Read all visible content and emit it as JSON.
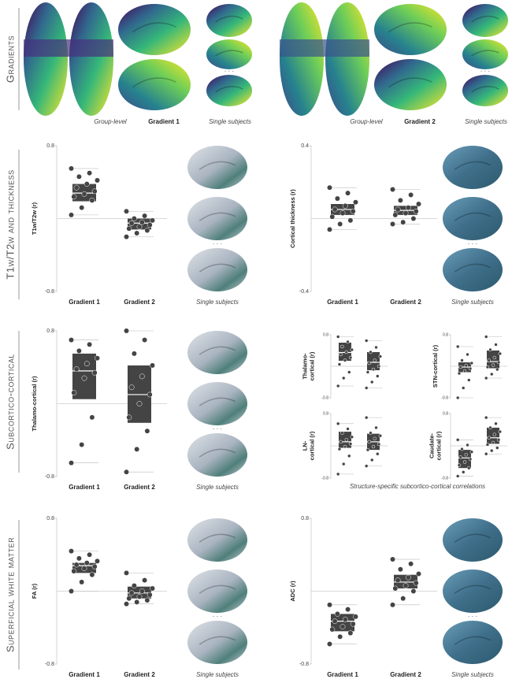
{
  "sections": [
    "Gradients",
    "T1w/T2w and thickness",
    "Subcortico-cortical",
    "Superficial white matter"
  ],
  "gradients_row": [
    {
      "group_caption": "Group-level",
      "gradient": "Gradient 1",
      "subjects_caption": "Single subjects"
    },
    {
      "group_caption": "Group-level",
      "gradient": "Gradient 2",
      "subjects_caption": "Single subjects"
    }
  ],
  "ellipsis": "· · ·",
  "subcortical_caption": "Structure-specific subcortico-cortical correlations",
  "chart_data": [
    {
      "type": "box",
      "ylabel": [
        "T1w/T2w (r)"
      ],
      "categories": [
        "Gradient 1",
        "Gradient 2"
      ],
      "caption": "Single subjects",
      "ylim": [
        -0.8,
        0.8
      ],
      "yticks": [
        -0.8,
        0.8
      ],
      "reference_line": 0,
      "boxes": [
        {
          "q1": 0.19,
          "median": 0.28,
          "q3": 0.38,
          "whiskers": [
            0.04,
            0.55
          ],
          "points": [
            0.55,
            0.5,
            0.46,
            0.42,
            0.38,
            0.34,
            0.3,
            0.27,
            0.24,
            0.2,
            0.12,
            0.04
          ]
        },
        {
          "q1": -0.12,
          "median": -0.05,
          "q3": 0,
          "whiskers": [
            -0.2,
            0.08
          ],
          "points": [
            0.08,
            0.03,
            0,
            -0.02,
            -0.04,
            -0.05,
            -0.07,
            -0.09,
            -0.11,
            -0.13,
            -0.16,
            -0.2
          ]
        }
      ]
    },
    {
      "type": "box",
      "ylabel": [
        "Cortical thickness (r)"
      ],
      "categories": [
        "Gradient 1",
        "Gradient 2"
      ],
      "caption": "Single subjects",
      "ylim": [
        -0.4,
        0.4
      ],
      "yticks": [
        -0.4,
        0.4
      ],
      "reference_line": 0,
      "boxes": [
        {
          "q1": 0.02,
          "median": 0.05,
          "q3": 0.08,
          "whiskers": [
            -0.06,
            0.17
          ],
          "points": [
            0.17,
            0.14,
            0.11,
            0.09,
            0.07,
            0.05,
            0.04,
            0.03,
            0.01,
            -0.01,
            -0.03,
            -0.06
          ]
        },
        {
          "q1": 0.02,
          "median": 0.045,
          "q3": 0.07,
          "whiskers": [
            -0.03,
            0.16
          ],
          "points": [
            0.16,
            0.13,
            0.1,
            0.08,
            0.06,
            0.05,
            0.04,
            0.03,
            0.02,
            0,
            -0.02,
            -0.03
          ]
        }
      ]
    },
    {
      "type": "box",
      "ylabel": [
        "Thalamo-cortical (r)"
      ],
      "categories": [
        "Gradient 1",
        "Gradient 2"
      ],
      "caption": "Single subjects",
      "ylim": [
        -0.8,
        0.8
      ],
      "yticks": [
        -0.8,
        0.8
      ],
      "reference_line": 0,
      "boxes": [
        {
          "q1": 0.05,
          "median": 0.36,
          "q3": 0.55,
          "whiskers": [
            -0.65,
            0.7
          ],
          "points": [
            0.7,
            0.65,
            0.58,
            0.5,
            0.44,
            0.38,
            0.34,
            0.28,
            0.12,
            -0.15,
            -0.45,
            -0.65
          ]
        },
        {
          "q1": -0.21,
          "median": 0.1,
          "q3": 0.42,
          "whiskers": [
            -0.75,
            0.8
          ],
          "points": [
            0.8,
            0.7,
            0.55,
            0.42,
            0.3,
            0.18,
            0.1,
            0,
            -0.15,
            -0.3,
            -0.5,
            -0.75
          ]
        }
      ]
    },
    {
      "type": "box",
      "ylabel": [
        "Thalamo-",
        "cortical (r)"
      ],
      "ylim": [
        -0.8,
        0.8
      ],
      "yticks": [
        -0.8,
        0.8
      ],
      "reference_line": 0,
      "boxes": [
        {
          "q1": 0.14,
          "median": 0.35,
          "q3": 0.6,
          "whiskers": [
            -0.5,
            0.75
          ],
          "points": [
            0.75,
            0.62,
            0.5,
            0.42,
            0.36,
            0.3,
            0.22,
            0.15,
            0.05,
            -0.15,
            -0.3,
            -0.5
          ]
        },
        {
          "q1": -0.1,
          "median": 0.1,
          "q3": 0.36,
          "whiskers": [
            -0.55,
            0.65
          ],
          "points": [
            0.65,
            0.48,
            0.36,
            0.25,
            0.15,
            0.08,
            0,
            -0.08,
            -0.15,
            -0.25,
            -0.4,
            -0.55
          ]
        }
      ]
    },
    {
      "type": "box",
      "ylabel": [
        "STN-cortical (r)"
      ],
      "ylim": [
        -0.8,
        0.8
      ],
      "yticks": [
        -0.8,
        0.8
      ],
      "reference_line": 0,
      "boxes": [
        {
          "q1": -0.15,
          "median": -0.02,
          "q3": 0.1,
          "whiskers": [
            -0.8,
            0.5
          ],
          "points": [
            0.5,
            0.3,
            0.15,
            0.08,
            0.02,
            -0.02,
            -0.06,
            -0.12,
            -0.18,
            -0.35,
            -0.55,
            -0.8
          ]
        },
        {
          "q1": -0.05,
          "median": 0.12,
          "q3": 0.4,
          "whiskers": [
            -0.3,
            0.75
          ],
          "points": [
            0.75,
            0.55,
            0.42,
            0.32,
            0.22,
            0.15,
            0.1,
            0.03,
            -0.02,
            -0.08,
            -0.2,
            -0.3
          ]
        }
      ]
    },
    {
      "type": "box",
      "ylabel": [
        "LN-",
        "cortical (r)"
      ],
      "ylim": [
        -0.8,
        0.8
      ],
      "yticks": [
        -0.8,
        0.8
      ],
      "reference_line": 0,
      "boxes": [
        {
          "q1": -0.05,
          "median": 0.1,
          "q3": 0.35,
          "whiskers": [
            -0.7,
            0.55
          ],
          "points": [
            0.55,
            0.42,
            0.32,
            0.22,
            0.15,
            0.1,
            0.05,
            -0.02,
            -0.08,
            -0.25,
            -0.45,
            -0.7
          ]
        },
        {
          "q1": -0.1,
          "median": 0.1,
          "q3": 0.3,
          "whiskers": [
            -0.5,
            0.7
          ],
          "points": [
            0.7,
            0.45,
            0.32,
            0.25,
            0.18,
            0.1,
            0.04,
            -0.02,
            -0.1,
            -0.2,
            -0.35,
            -0.5
          ]
        }
      ]
    },
    {
      "type": "box",
      "ylabel": [
        "Caudate-",
        "cortical (r)"
      ],
      "ylim": [
        -0.8,
        0.8
      ],
      "yticks": [
        -0.8,
        0.8
      ],
      "reference_line": 0,
      "boxes": [
        {
          "q1": -0.55,
          "median": -0.3,
          "q3": -0.1,
          "whiskers": [
            -0.75,
            0.15
          ],
          "points": [
            0.15,
            0.02,
            -0.08,
            -0.15,
            -0.22,
            -0.28,
            -0.33,
            -0.4,
            -0.48,
            -0.55,
            -0.65,
            -0.75
          ]
        },
        {
          "q1": 0.05,
          "median": 0.2,
          "q3": 0.45,
          "whiskers": [
            -0.2,
            0.7
          ],
          "points": [
            0.7,
            0.55,
            0.45,
            0.35,
            0.28,
            0.2,
            0.15,
            0.08,
            0.03,
            -0.05,
            -0.12,
            -0.2
          ]
        }
      ]
    },
    {
      "type": "box",
      "ylabel": [
        "FA (r)"
      ],
      "categories": [
        "Gradient 1",
        "Gradient 2"
      ],
      "caption": "Single subjects",
      "ylim": [
        -0.8,
        0.8
      ],
      "yticks": [
        -0.8,
        0.8
      ],
      "reference_line": 0,
      "boxes": [
        {
          "q1": 0.2,
          "median": 0.28,
          "q3": 0.31,
          "whiskers": [
            0,
            0.44
          ],
          "points": [
            0.44,
            0.4,
            0.36,
            0.33,
            0.31,
            0.29,
            0.27,
            0.25,
            0.22,
            0.18,
            0.1,
            0
          ]
        },
        {
          "q1": -0.08,
          "median": -0.02,
          "q3": 0.05,
          "whiskers": [
            -0.14,
            0.2
          ],
          "points": [
            0.2,
            0.12,
            0.06,
            0.03,
            0,
            -0.02,
            -0.04,
            -0.06,
            -0.08,
            -0.1,
            -0.12,
            -0.14
          ]
        }
      ]
    },
    {
      "type": "box",
      "ylabel": [
        "ADC (r)"
      ],
      "categories": [
        "Gradient 1",
        "Gradient 2"
      ],
      "caption": "Single subjects",
      "ylim": [
        -0.8,
        0.8
      ],
      "yticks": [
        -0.8,
        0.8
      ],
      "reference_line": 0,
      "boxes": [
        {
          "q1": -0.44,
          "median": -0.33,
          "q3": -0.25,
          "whiskers": [
            -0.58,
            -0.15
          ],
          "points": [
            -0.15,
            -0.2,
            -0.25,
            -0.28,
            -0.31,
            -0.33,
            -0.36,
            -0.39,
            -0.42,
            -0.46,
            -0.5,
            -0.58
          ]
        },
        {
          "q1": 0.03,
          "median": 0.1,
          "q3": 0.18,
          "whiskers": [
            -0.15,
            0.35
          ],
          "points": [
            0.35,
            0.3,
            0.24,
            0.19,
            0.15,
            0.12,
            0.09,
            0.06,
            0.03,
            0,
            -0.08,
            -0.15
          ]
        }
      ]
    }
  ]
}
